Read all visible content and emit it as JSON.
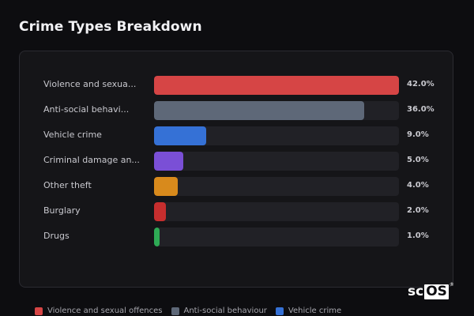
{
  "page": {
    "title": "Crime Types Breakdown"
  },
  "chart_data": {
    "type": "bar",
    "orientation": "horizontal",
    "title": "Crime Types Breakdown",
    "max": 42.0,
    "categories": [
      "Violence and sexua...",
      "Anti-social behavi...",
      "Vehicle crime",
      "Criminal damage an...",
      "Other theft",
      "Burglary",
      "Drugs"
    ],
    "values": [
      42.0,
      36.0,
      9.0,
      5.0,
      4.0,
      2.0,
      1.0
    ],
    "value_labels": [
      "42.0%",
      "36.0%",
      "9.0%",
      "5.0%",
      "4.0%",
      "2.0%",
      "1.0%"
    ],
    "colors": [
      "#d64545",
      "#5e6878",
      "#3571d6",
      "#7a4fd6",
      "#d88a1c",
      "#c62e2e",
      "#2eaa55"
    ]
  },
  "legend": {
    "items": [
      {
        "label": "Violence and sexual offences",
        "color": "#d64545"
      },
      {
        "label": "Anti-social behaviour",
        "color": "#5e6878"
      },
      {
        "label": "Vehicle crime",
        "color": "#3571d6"
      }
    ]
  },
  "logo": {
    "text_left": "sc",
    "text_box": "OS",
    "mark": "®"
  }
}
